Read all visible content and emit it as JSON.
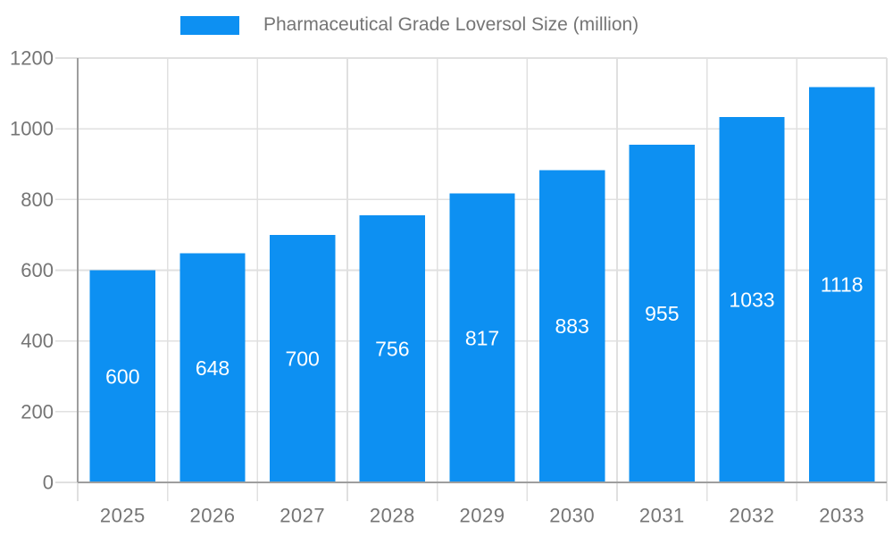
{
  "legend": {
    "label": "Pharmaceutical Grade Loversol Size (million)"
  },
  "colors": {
    "bar": "#0D90F2",
    "axis": "#9E9E9E",
    "grid": "#E0E0E0",
    "text": "#757575",
    "bar_label": "#FFFFFF",
    "background": "#FFFFFF"
  },
  "chart_data": {
    "type": "bar",
    "title": "Pharmaceutical Grade Loversol Size (million)",
    "categories": [
      "2025",
      "2026",
      "2027",
      "2028",
      "2029",
      "2030",
      "2031",
      "2032",
      "2033"
    ],
    "series": [
      {
        "name": "Pharmaceutical Grade Loversol Size (million)",
        "values": [
          600,
          648,
          700,
          756,
          817,
          883,
          955,
          1033,
          1118
        ],
        "color": "#0D90F2"
      }
    ],
    "xlabel": "",
    "ylabel": "",
    "ylim": [
      0,
      1200
    ],
    "yticks": [
      0,
      200,
      400,
      600,
      800,
      1000,
      1200
    ],
    "grid": true,
    "legend_position": "top",
    "value_labels": "inside-center"
  }
}
